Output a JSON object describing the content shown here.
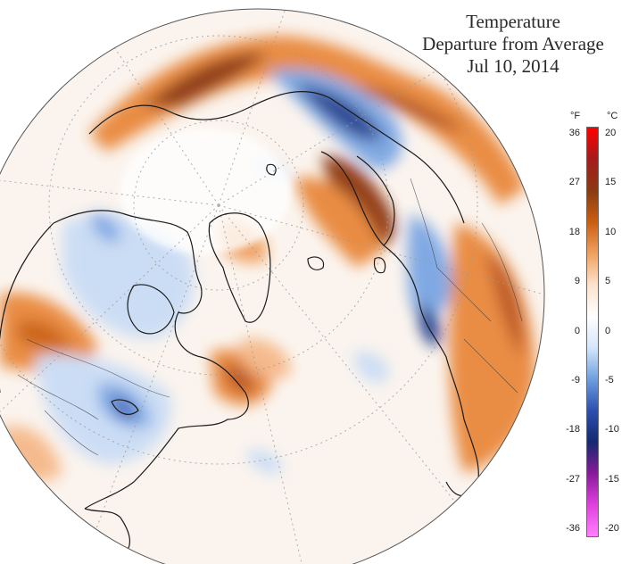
{
  "title": {
    "line1": "Temperature",
    "line2": "Departure from Average",
    "line3": "Jul 10, 2014"
  },
  "legend": {
    "unit_f": "°F",
    "unit_c": "°C",
    "ticks": [
      {
        "f": "36",
        "c": "20"
      },
      {
        "f": "27",
        "c": "15"
      },
      {
        "f": "18",
        "c": "10"
      },
      {
        "f": "9",
        "c": "5"
      },
      {
        "f": "0",
        "c": "0"
      },
      {
        "f": "-9",
        "c": "-5"
      },
      {
        "f": "-18",
        "c": "-10"
      },
      {
        "f": "-27",
        "c": "-15"
      },
      {
        "f": "-36",
        "c": "-20"
      }
    ],
    "colors": [
      "#ff0000",
      "#a51b1b",
      "#8b3a12",
      "#c95f10",
      "#f0a060",
      "#fde3cc",
      "#ffffff",
      "#d6e6fa",
      "#6f9fe0",
      "#2d4fb0",
      "#142a70",
      "#8a1a9a",
      "#e040e0",
      "#ff80ff"
    ]
  },
  "map": {
    "projection": "orthographic, north polar view",
    "colors": {
      "warm_light": "#f7c9a0",
      "warm_mid": "#e8873a",
      "warm_dark": "#8c3410",
      "cool_light": "#c9dcf5",
      "cool_mid": "#7aa6e3",
      "cool_dark": "#24408f",
      "neutral": "#ffffff",
      "coastline": "#1a1a1a",
      "graticule": "#9a9a9a"
    }
  }
}
